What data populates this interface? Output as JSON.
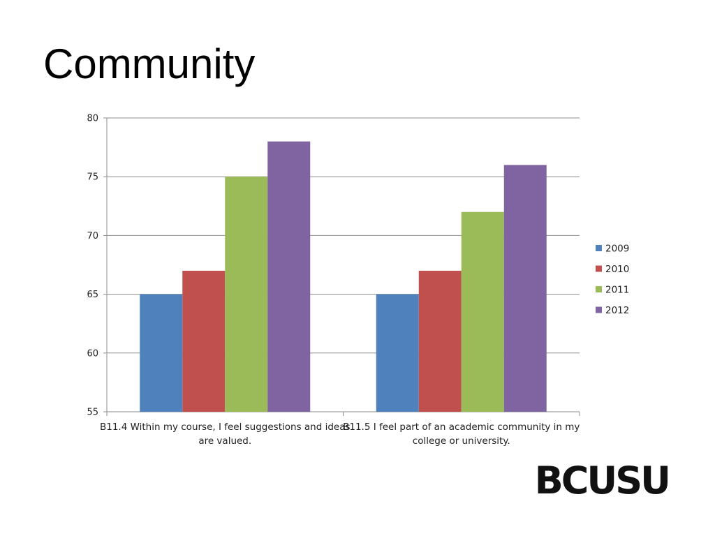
{
  "slide": {
    "title": "Community"
  },
  "logo": {
    "text": "BCUSU"
  },
  "chart_data": {
    "type": "bar",
    "title": "",
    "xlabel": "",
    "ylabel": "",
    "ylim": [
      55,
      80
    ],
    "yticks": [
      55,
      60,
      65,
      70,
      75,
      80
    ],
    "grid": true,
    "legend_position": "right",
    "categories": [
      [
        "B11.4 Within my course, I feel suggestions and ideas",
        "are valued."
      ],
      [
        "B11.5 I feel part of an academic community in my",
        "college or university."
      ]
    ],
    "series": [
      {
        "name": "2009",
        "color": "#4F81BD",
        "values": [
          65,
          65
        ]
      },
      {
        "name": "2010",
        "color": "#C0504D",
        "values": [
          67,
          67
        ]
      },
      {
        "name": "2011",
        "color": "#9BBB59",
        "values": [
          75,
          72
        ]
      },
      {
        "name": "2012",
        "color": "#8064A2",
        "values": [
          78,
          76
        ]
      }
    ]
  }
}
